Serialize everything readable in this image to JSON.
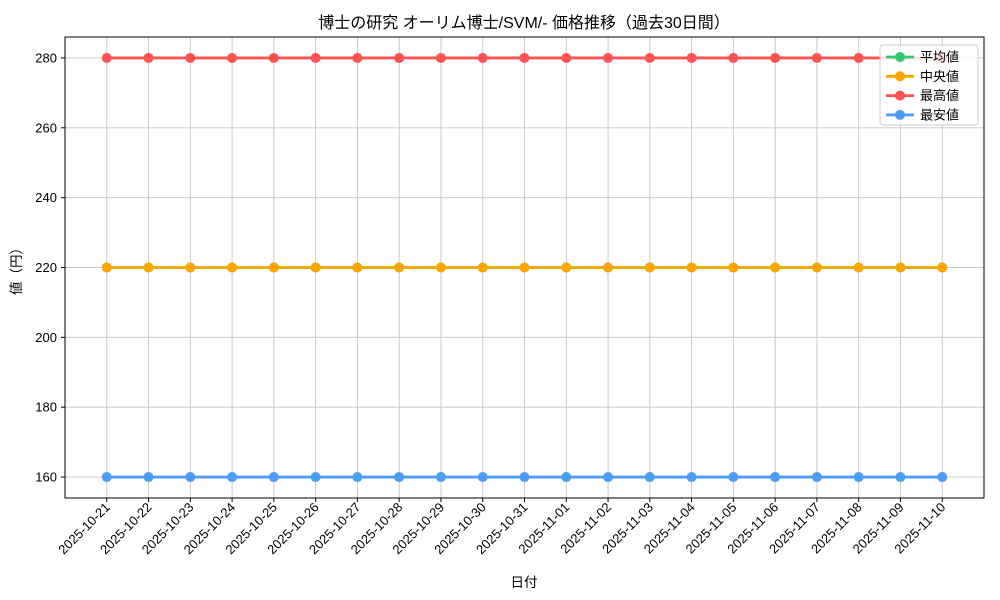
{
  "chart_data": {
    "type": "line",
    "title": "博士の研究 オーリム博士/SVM/- 価格推移（過去30日間）",
    "xlabel": "日付",
    "ylabel": "値（円）",
    "background": "#ffffff",
    "grid": true,
    "grid_color": "#c4c4c4",
    "legend_position": "upper right",
    "ylim": [
      154,
      286
    ],
    "yticks": [
      160,
      180,
      200,
      220,
      240,
      260,
      280
    ],
    "categories": [
      "2025-10-21",
      "2025-10-22",
      "2025-10-23",
      "2025-10-24",
      "2025-10-25",
      "2025-10-26",
      "2025-10-27",
      "2025-10-28",
      "2025-10-29",
      "2025-10-30",
      "2025-10-31",
      "2025-11-01",
      "2025-11-02",
      "2025-11-03",
      "2025-11-04",
      "2025-11-05",
      "2025-11-06",
      "2025-11-07",
      "2025-11-08",
      "2025-11-09",
      "2025-11-10"
    ],
    "series": [
      {
        "name": "平均値",
        "color": "#2ecc71",
        "values": [
          220,
          220,
          220,
          220,
          220,
          220,
          220,
          220,
          220,
          220,
          220,
          220,
          220,
          220,
          220,
          220,
          220,
          220,
          220,
          220,
          220
        ]
      },
      {
        "name": "中央値",
        "color": "#ffa502",
        "values": [
          220,
          220,
          220,
          220,
          220,
          220,
          220,
          220,
          220,
          220,
          220,
          220,
          220,
          220,
          220,
          220,
          220,
          220,
          220,
          220,
          220
        ]
      },
      {
        "name": "最高値",
        "color": "#ff5252",
        "values": [
          280,
          280,
          280,
          280,
          280,
          280,
          280,
          280,
          280,
          280,
          280,
          280,
          280,
          280,
          280,
          280,
          280,
          280,
          280,
          280,
          280
        ]
      },
      {
        "name": "最安値",
        "color": "#4d9cf5",
        "values": [
          160,
          160,
          160,
          160,
          160,
          160,
          160,
          160,
          160,
          160,
          160,
          160,
          160,
          160,
          160,
          160,
          160,
          160,
          160,
          160,
          160
        ]
      }
    ]
  }
}
